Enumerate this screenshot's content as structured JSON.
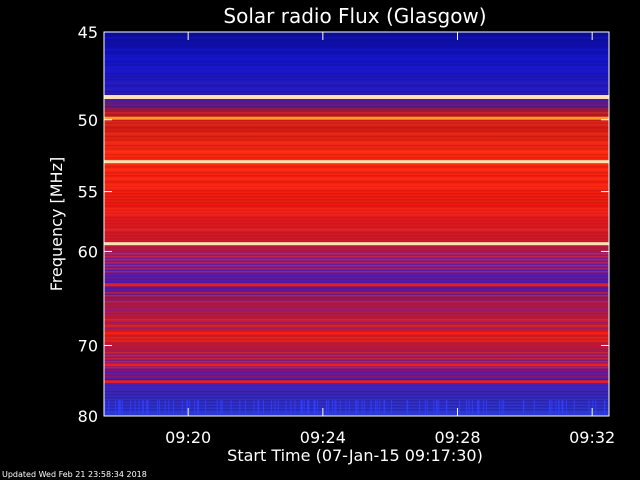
{
  "chart_data": {
    "type": "heatmap",
    "title": "Solar radio Flux (Glasgow)",
    "xlabel": "Start Time (07-Jan-15 09:17:30)",
    "ylabel": "Frequency [MHz]",
    "x_range": [
      "09:17:30",
      "09:32:30"
    ],
    "x_ticks": [
      "09:20",
      "09:24",
      "09:28",
      "09:32"
    ],
    "y_range": [
      45,
      80
    ],
    "y_ticks": [
      45,
      50,
      55,
      60,
      70,
      80
    ],
    "y_scale": "reciprocal",
    "band_lines_mhz": [
      48.6,
      49.9,
      52.8,
      59.3
    ],
    "intensity_colormap": [
      "#00007a",
      "#1a1ad0",
      "#8a1ab0",
      "#c01010",
      "#ff2a10",
      "#ffd8a8"
    ],
    "footer": "Updated Wed Feb 21 23:58:34 2018"
  }
}
